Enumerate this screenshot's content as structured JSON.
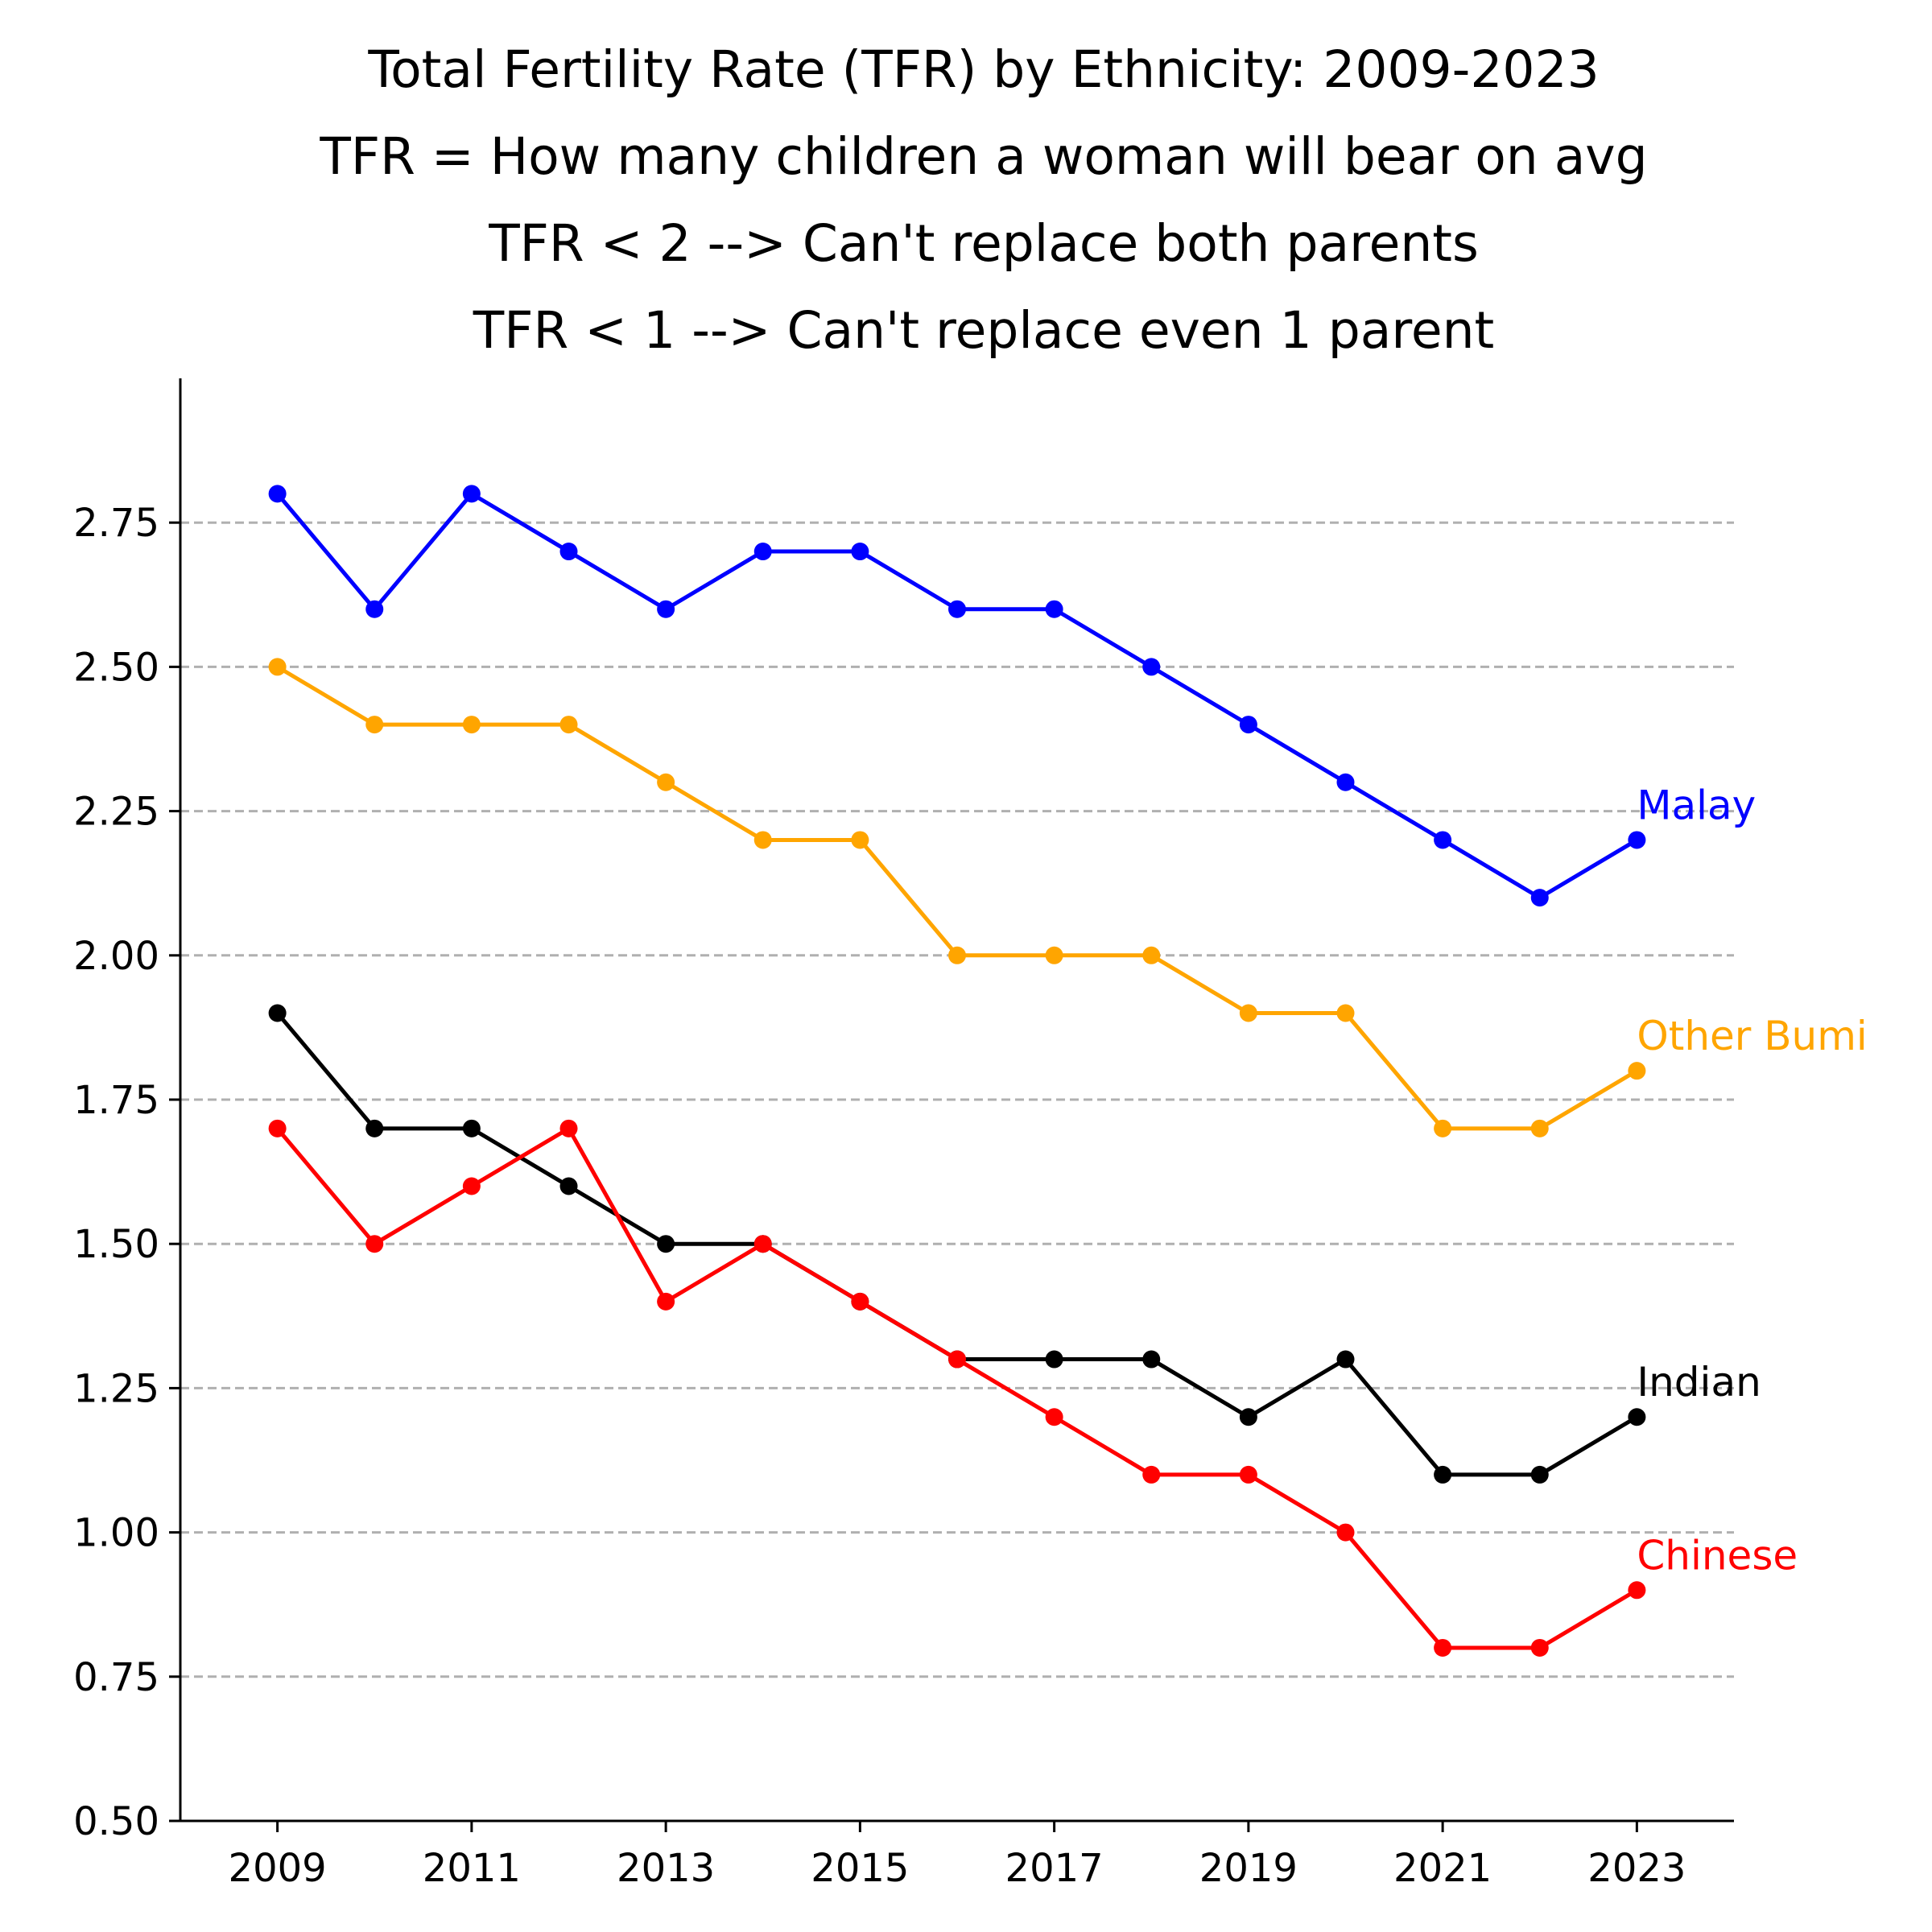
{
  "chart_data": {
    "type": "line",
    "title_lines": [
      "Total Fertility Rate (TFR) by Ethnicity: 2009-2023",
      "TFR = How many children a woman will bear on avg",
      "TFR < 2 --> Can't replace both parents",
      "TFR < 1 --> Can't replace even 1 parent"
    ],
    "xlabel": "",
    "ylabel": "",
    "x": [
      2009,
      2010,
      2011,
      2012,
      2013,
      2014,
      2015,
      2016,
      2017,
      2018,
      2019,
      2020,
      2021,
      2022,
      2023
    ],
    "xlim": [
      2008,
      2024
    ],
    "ylim": [
      0.5,
      3.0
    ],
    "x_ticks": [
      2009,
      2011,
      2013,
      2015,
      2017,
      2019,
      2021,
      2023
    ],
    "x_tick_labels": [
      "2009",
      "2011",
      "2013",
      "2015",
      "2017",
      "2019",
      "2021",
      "2023"
    ],
    "y_ticks": [
      0.5,
      0.75,
      1.0,
      1.25,
      1.5,
      1.75,
      2.0,
      2.25,
      2.5,
      2.75
    ],
    "y_tick_labels": [
      "0.50",
      "0.75",
      "1.00",
      "1.25",
      "1.50",
      "1.75",
      "2.00",
      "2.25",
      "2.50",
      "2.75"
    ],
    "grid": "horizontal dashed",
    "legend": "none (series labelled at line ends)",
    "series": [
      {
        "name": "Malay",
        "color": "#0000ff",
        "values": [
          2.8,
          2.6,
          2.8,
          2.7,
          2.6,
          2.7,
          2.7,
          2.6,
          2.6,
          2.5,
          2.4,
          2.3,
          2.2,
          2.1,
          2.2
        ]
      },
      {
        "name": "Other Bumi",
        "color": "#ffa500",
        "values": [
          2.5,
          2.4,
          2.4,
          2.4,
          2.3,
          2.2,
          2.2,
          2.0,
          2.0,
          2.0,
          1.9,
          1.9,
          1.7,
          1.7,
          1.8
        ]
      },
      {
        "name": "Indian",
        "color": "#000000",
        "values": [
          1.9,
          1.7,
          1.7,
          1.6,
          1.5,
          1.5,
          1.4,
          1.3,
          1.3,
          1.3,
          1.2,
          1.3,
          1.1,
          1.1,
          1.2
        ]
      },
      {
        "name": "Chinese",
        "color": "#ff0000",
        "values": [
          1.7,
          1.5,
          1.6,
          1.7,
          1.4,
          1.5,
          1.4,
          1.3,
          1.2,
          1.1,
          1.1,
          1.0,
          0.8,
          0.8,
          0.9
        ]
      }
    ]
  }
}
